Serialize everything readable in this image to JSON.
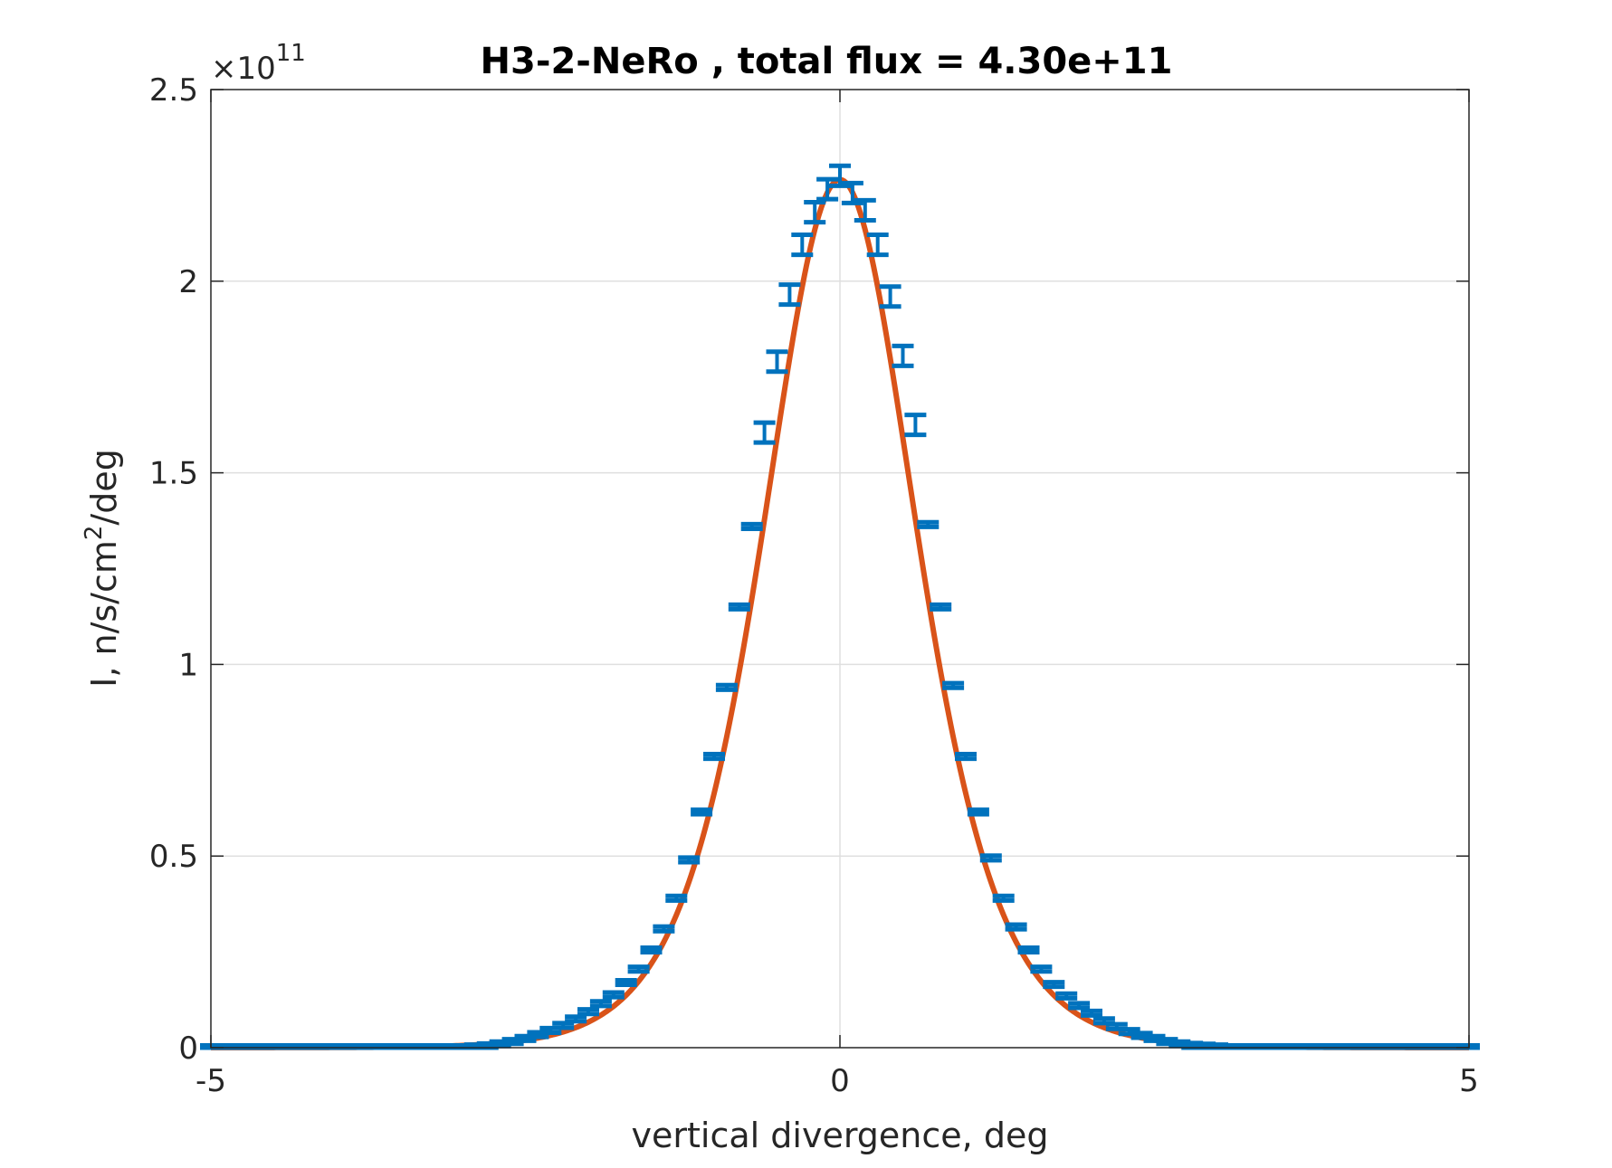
{
  "chart_data": {
    "type": "line",
    "title": "H3-2-NeRo , total flux =  4.30e+11",
    "xlabel": "vertical divergence, deg",
    "ylabel_main": "I, n/s/cm",
    "ylabel_sup": "2",
    "ylabel_tail": "/deg",
    "exponent_base": "×10",
    "exponent_power": "11",
    "xlim": [
      -5,
      5
    ],
    "ylim": [
      0,
      2.5
    ],
    "x_ticks": [
      -5,
      0,
      5
    ],
    "x_tick_labels": [
      "-5",
      "0",
      "5"
    ],
    "y_ticks": [
      0,
      0.5,
      1,
      1.5,
      2,
      2.5
    ],
    "y_tick_labels": [
      "0",
      "0.5",
      "1",
      "1.5",
      "2",
      "2.5"
    ],
    "grid": true,
    "series": [
      {
        "kind": "errorbar",
        "color": "#0072BD",
        "x": [
          -5.0,
          -4.9,
          -4.8,
          -4.7,
          -4.6,
          -4.5,
          -4.4,
          -4.3,
          -4.2,
          -4.1,
          -4.0,
          -3.9,
          -3.8,
          -3.7,
          -3.6,
          -3.5,
          -3.4,
          -3.3,
          -3.2,
          -3.1,
          -3.0,
          -2.9,
          -2.8,
          -2.7,
          -2.6,
          -2.5,
          -2.4,
          -2.3,
          -2.2,
          -2.1,
          -2.0,
          -1.9,
          -1.8,
          -1.7,
          -1.6,
          -1.5,
          -1.4,
          -1.3,
          -1.2,
          -1.1,
          -1.0,
          -0.9,
          -0.8,
          -0.7,
          -0.6,
          -0.5,
          -0.4,
          -0.3,
          -0.2,
          -0.1,
          0.0,
          0.1,
          0.2,
          0.3,
          0.4,
          0.5,
          0.6,
          0.7,
          0.8,
          0.9,
          1.0,
          1.1,
          1.2,
          1.3,
          1.4,
          1.5,
          1.6,
          1.7,
          1.8,
          1.9,
          2.0,
          2.1,
          2.2,
          2.3,
          2.4,
          2.5,
          2.6,
          2.7,
          2.8,
          2.9,
          3.0,
          3.1,
          3.2,
          3.3,
          3.4,
          3.5,
          3.6,
          3.7,
          3.8,
          3.9,
          4.0,
          4.1,
          4.2,
          4.3,
          4.4,
          4.5,
          4.6,
          4.7,
          4.8,
          4.9,
          5.0
        ],
        "y": [
          0.0,
          0.0,
          0.0,
          0.0,
          0.0,
          0.0,
          0.0,
          0.0,
          0.0,
          0.0,
          0.0,
          0.0,
          0.0,
          0.0,
          0.0,
          0.0,
          0.0,
          0.0,
          0.0,
          0.0,
          0.0,
          0.002,
          0.005,
          0.01,
          0.016,
          0.024,
          0.034,
          0.045,
          0.058,
          0.075,
          0.094,
          0.115,
          0.138,
          0.17,
          0.205,
          0.255,
          0.31,
          0.39,
          0.49,
          0.615,
          0.76,
          0.94,
          1.15,
          1.36,
          1.605,
          1.79,
          1.965,
          2.095,
          2.18,
          2.24,
          2.275,
          2.23,
          2.185,
          2.095,
          1.96,
          1.805,
          1.625,
          1.365,
          1.15,
          0.945,
          0.76,
          0.615,
          0.495,
          0.39,
          0.315,
          0.255,
          0.205,
          0.165,
          0.135,
          0.11,
          0.09,
          0.07,
          0.055,
          0.042,
          0.032,
          0.024,
          0.016,
          0.01,
          0.006,
          0.004,
          0.002,
          0.0,
          0.0,
          0.0,
          0.0,
          0.0,
          0.0,
          0.0,
          0.0,
          0.0,
          0.0,
          0.0,
          0.0,
          0.0,
          0.0,
          0.0,
          0.0,
          0.0,
          0.0,
          0.0,
          0.0
        ],
        "err": [
          0.0,
          0.0,
          0.0,
          0.0,
          0.0,
          0.0,
          0.0,
          0.0,
          0.0,
          0.0,
          0.0,
          0.0,
          0.0,
          0.0,
          0.0,
          0.0,
          0.0,
          0.0,
          0.0,
          0.0,
          0.0,
          0.0,
          0.0,
          0.0,
          0.0,
          0.0,
          0.0,
          0.0,
          0.0,
          0.0,
          0.0,
          0.0,
          0.0,
          0.0,
          0.0,
          0.0,
          0.0,
          0.0,
          0.0,
          0.0,
          0.0,
          0.0,
          0.0,
          0.0,
          0.02,
          0.02,
          0.02,
          0.02,
          0.02,
          0.02,
          0.02,
          0.02,
          0.02,
          0.02,
          0.02,
          0.02,
          0.02,
          0.0,
          0.0,
          0.0,
          0.0,
          0.0,
          0.0,
          0.0,
          0.0,
          0.0,
          0.0,
          0.0,
          0.0,
          0.0,
          0.0,
          0.0,
          0.0,
          0.0,
          0.0,
          0.0,
          0.0,
          0.0,
          0.0,
          0.0,
          0.0,
          0.0,
          0.0,
          0.0,
          0.0,
          0.0,
          0.0,
          0.0,
          0.0,
          0.0,
          0.0,
          0.0,
          0.0,
          0.0,
          0.0,
          0.0,
          0.0,
          0.0,
          0.0,
          0.0,
          0.0
        ]
      },
      {
        "kind": "fit-line",
        "color": "#D95319",
        "center": 0,
        "peak": 2.265,
        "fwhm": 1.44
      }
    ]
  }
}
